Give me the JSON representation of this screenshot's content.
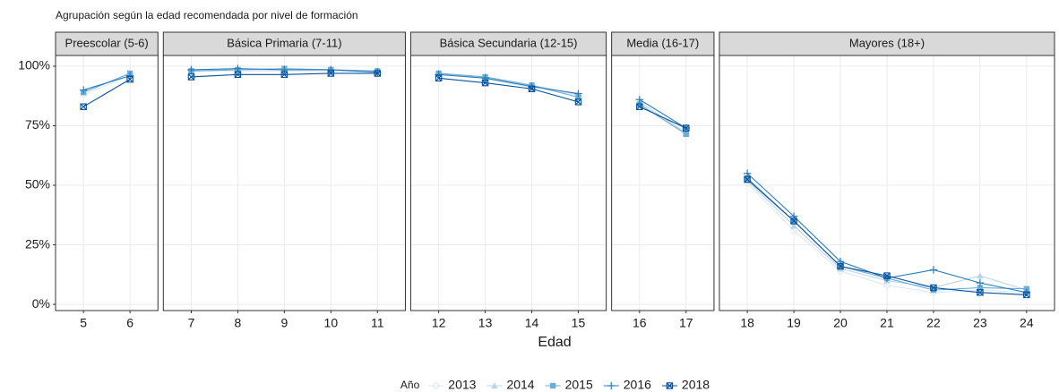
{
  "chart_data": {
    "type": "line",
    "title": "Agrupación según la edad recomendada por nivel de formación",
    "xlabel": "Edad",
    "legend_title": "Año",
    "legend_position": "bottom",
    "grid": true,
    "ylim": [
      -2.6,
      104.5
    ],
    "yticks": [
      {
        "value": 0,
        "label": "0%"
      },
      {
        "value": 25,
        "label": "25%"
      },
      {
        "value": 50,
        "label": "50%"
      },
      {
        "value": 75,
        "label": "75%"
      },
      {
        "value": 100,
        "label": "100%"
      }
    ],
    "series": [
      {
        "name": "2013",
        "color": "#dde8f4",
        "shape": "circle"
      },
      {
        "name": "2014",
        "color": "#b8d4ea",
        "shape": "triangle"
      },
      {
        "name": "2015",
        "color": "#6baed6",
        "shape": "square"
      },
      {
        "name": "2016",
        "color": "#2b7bba",
        "shape": "plus"
      },
      {
        "name": "2018",
        "color": "#08519c",
        "shape": "square-cross"
      }
    ],
    "facets": [
      {
        "title": "Preescolar (5-6)",
        "x": [
          5,
          6
        ],
        "xlim": [
          4.4,
          6.6
        ],
        "series": [
          {
            "values": [
              88,
              96
            ]
          },
          {
            "values": [
              89,
              97
            ]
          },
          {
            "values": [
              89,
              97
            ]
          },
          {
            "values": [
              90,
              96
            ]
          },
          {
            "values": [
              83,
              94.5
            ]
          }
        ]
      },
      {
        "title": "Básica Primaria (7-11)",
        "x": [
          7,
          8,
          9,
          10,
          11
        ],
        "xlim": [
          6.4,
          11.6
        ],
        "series": [
          {
            "values": [
              98,
              98,
              98,
              98,
              97.5
            ]
          },
          {
            "values": [
              98,
              98.5,
              98.5,
              98.5,
              98
            ]
          },
          {
            "values": [
              98,
              98.5,
              99,
              98.5,
              98
            ]
          },
          {
            "values": [
              98.5,
              99,
              98.5,
              98.5,
              97.5
            ]
          },
          {
            "values": [
              95.5,
              96.5,
              96.5,
              97,
              97
            ]
          }
        ]
      },
      {
        "title": "Básica Secundaria (12-15)",
        "x": [
          12,
          13,
          14,
          15
        ],
        "xlim": [
          11.4,
          15.6
        ],
        "series": [
          {
            "values": [
              97,
              95,
              91,
              88
            ]
          },
          {
            "values": [
              97,
              95.5,
              92,
              88
            ]
          },
          {
            "values": [
              97,
              95.5,
              92,
              87
            ]
          },
          {
            "values": [
              96.5,
              95,
              91.5,
              88.5
            ]
          },
          {
            "values": [
              95,
              93,
              90.5,
              85
            ]
          }
        ]
      },
      {
        "title": "Media (16-17)",
        "x": [
          16,
          17
        ],
        "xlim": [
          15.4,
          17.6
        ],
        "series": [
          {
            "values": [
              84,
              72
            ]
          },
          {
            "values": [
              85,
              72
            ]
          },
          {
            "values": [
              84,
              71.5
            ]
          },
          {
            "values": [
              86,
              74
            ]
          },
          {
            "values": [
              83,
              74
            ]
          }
        ]
      },
      {
        "title": "Mayores (18+)",
        "x": [
          18,
          19,
          20,
          21,
          22,
          23,
          24
        ],
        "xlim": [
          17.4,
          24.6
        ],
        "series": [
          {
            "values": [
              51,
              31,
              14,
              8,
              5,
              6,
              5
            ]
          },
          {
            "values": [
              52,
              33,
              15,
              10,
              7,
              12,
              6
            ]
          },
          {
            "values": [
              53,
              35,
              16,
              11,
              6,
              7,
              6.5
            ]
          },
          {
            "values": [
              55,
              37,
              18,
              11,
              14.5,
              9,
              5
            ]
          },
          {
            "values": [
              52.5,
              35,
              16,
              12,
              7,
              5,
              4
            ]
          }
        ]
      }
    ]
  }
}
